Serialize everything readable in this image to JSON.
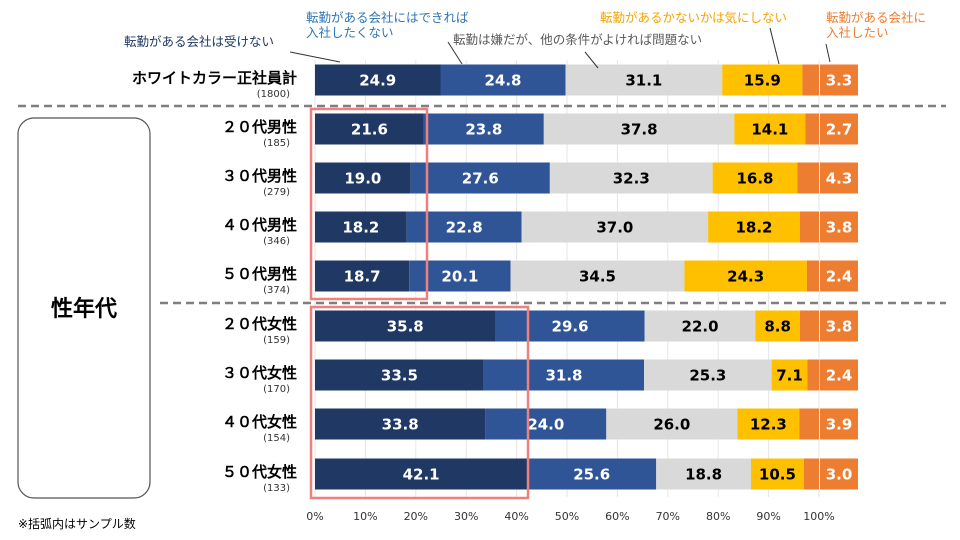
{
  "chart_data": {
    "type": "bar",
    "orientation": "horizontal",
    "stacked": true,
    "group_label": "性年代",
    "note": "※括弧内はサンプル数",
    "x_ticks": [
      "0%",
      "10%",
      "20%",
      "30%",
      "40%",
      "50%",
      "60%",
      "70%",
      "80%",
      "90%",
      "100%"
    ],
    "xlim": [
      0,
      100
    ],
    "rows": [
      {
        "label": "ホワイトカラー正社員計",
        "sample": "(1800)"
      },
      {
        "label": "２０代男性",
        "sample": "(185)"
      },
      {
        "label": "３０代男性",
        "sample": "(279)"
      },
      {
        "label": "４０代男性",
        "sample": "(346)"
      },
      {
        "label": "５０代男性",
        "sample": "(374)"
      },
      {
        "label": "２０代女性",
        "sample": "(159)"
      },
      {
        "label": "３０代女性",
        "sample": "(170)"
      },
      {
        "label": "４０代女性",
        "sample": "(154)"
      },
      {
        "label": "５０代女性",
        "sample": "(133)"
      }
    ],
    "series": [
      {
        "name": "転勤がある会社は受けない",
        "color": "#1f3864",
        "values": [
          24.9,
          21.6,
          19.0,
          18.2,
          18.7,
          35.8,
          33.5,
          33.8,
          42.1
        ],
        "labels": [
          "24.9",
          "21.6",
          "19.0",
          "18.2",
          "18.7",
          "35.8",
          "33.5",
          "33.8",
          "42.1"
        ]
      },
      {
        "name": "転勤がある会社にはできれば入社したくない",
        "color": "#2f5597",
        "values": [
          24.8,
          23.8,
          27.6,
          22.8,
          20.1,
          29.6,
          31.8,
          24.0,
          25.6
        ],
        "labels": [
          "24.8",
          "23.8",
          "27.6",
          "22.8",
          "20.1",
          "29.6",
          "31.8",
          "24.0",
          "25.6"
        ]
      },
      {
        "name": "転勤は嫌だが、他の条件がよければ問題ない",
        "color": "#d9d9d9",
        "values": [
          31.1,
          37.8,
          32.3,
          37.0,
          34.5,
          22.0,
          25.3,
          26.0,
          18.8
        ],
        "labels": [
          "31.1",
          "37.8",
          "32.3",
          "37.0",
          "34.5",
          "22.0",
          "25.3",
          "26.0",
          "18.8"
        ]
      },
      {
        "name": "転勤があるかないかは気にしない",
        "color": "#ffc000",
        "values": [
          15.9,
          14.1,
          16.8,
          18.2,
          24.3,
          8.8,
          7.1,
          12.3,
          10.5
        ],
        "labels": [
          "15.9",
          "14.1",
          "16.8",
          "18.2",
          "24.3",
          "8.8",
          "7.1",
          "12.3",
          "10.5"
        ]
      },
      {
        "name": "転勤がある会社に入社したい",
        "color": "#ed7d31",
        "values": [
          3.3,
          2.7,
          4.3,
          3.8,
          2.4,
          3.8,
          2.4,
          3.9,
          3.0
        ],
        "labels": [
          "3.3",
          "2.7",
          "4.3",
          "3.8",
          "2.4",
          "3.8",
          "2.4",
          "3.9",
          "3.0"
        ]
      }
    ],
    "legend": [
      {
        "lines": [
          "転勤がある会社は受けない"
        ],
        "color": "#1f3864"
      },
      {
        "lines": [
          "転勤がある会社にはできれば",
          "入社したくない"
        ],
        "color": "#2e75b6"
      },
      {
        "lines": [
          "転勤は嫌だが、他の条件がよければ問題ない"
        ],
        "color": "#595959"
      },
      {
        "lines": [
          "転勤があるかないかは気にしない"
        ],
        "color": "#f4a300"
      },
      {
        "lines": [
          "転勤がある会社に",
          "入社したい"
        ],
        "color": "#ed7d31"
      }
    ]
  }
}
